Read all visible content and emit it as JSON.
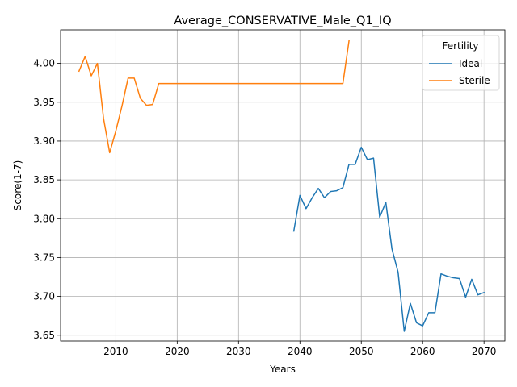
{
  "chart_data": {
    "type": "line",
    "title": "Average_CONSERVATIVE_Male_Q1_IQ",
    "xlabel": "Years",
    "ylabel": "Score(1-7)",
    "xlim": [
      2001,
      2073.4
    ],
    "ylim": [
      3.6425,
      4.0432
    ],
    "xticks": [
      2010,
      2020,
      2030,
      2040,
      2050,
      2060,
      2070
    ],
    "yticks": [
      3.65,
      3.7,
      3.75,
      3.8,
      3.85,
      3.9,
      3.95,
      4.0
    ],
    "ytick_labels": [
      "3.65",
      "3.70",
      "3.75",
      "3.80",
      "3.85",
      "3.90",
      "3.95",
      "4.00"
    ],
    "grid": true,
    "legend": {
      "title": "Fertility",
      "placement": "top-right"
    },
    "series": [
      {
        "name": "Ideal",
        "color": "#1f77b4",
        "x": [
          2039,
          2040,
          2041,
          2042,
          2043,
          2044,
          2045,
          2046,
          2047,
          2048,
          2049,
          2050,
          2051,
          2052,
          2053,
          2054,
          2055,
          2056,
          2057,
          2058,
          2059,
          2060,
          2061,
          2062,
          2063,
          2064,
          2065,
          2066,
          2067,
          2068,
          2069,
          2070
        ],
        "y": [
          3.784,
          3.83,
          3.813,
          3.827,
          3.839,
          3.827,
          3.835,
          3.836,
          3.84,
          3.87,
          3.87,
          3.892,
          3.876,
          3.878,
          3.802,
          3.821,
          3.761,
          3.731,
          3.655,
          3.691,
          3.666,
          3.662,
          3.679,
          3.679,
          3.729,
          3.726,
          3.724,
          3.723,
          3.699,
          3.722,
          3.702,
          3.705
        ]
      },
      {
        "name": "Sterile",
        "color": "#ff7f0e",
        "x": [
          2004,
          2005,
          2006,
          2007,
          2008,
          2009,
          2010,
          2011,
          2012,
          2013,
          2014,
          2015,
          2016,
          2017,
          2018,
          2019,
          2020,
          2021,
          2022,
          2023,
          2024,
          2025,
          2026,
          2027,
          2028,
          2029,
          2030,
          2031,
          2032,
          2033,
          2034,
          2035,
          2036,
          2037,
          2038,
          2039,
          2040,
          2041,
          2042,
          2043,
          2044,
          2045,
          2046,
          2047,
          2048
        ],
        "y": [
          3.99,
          4.009,
          3.984,
          4.0,
          3.929,
          3.885,
          3.913,
          3.945,
          3.981,
          3.981,
          3.955,
          3.946,
          3.947,
          3.974,
          3.974,
          3.974,
          3.974,
          3.974,
          3.974,
          3.974,
          3.974,
          3.974,
          3.974,
          3.974,
          3.974,
          3.974,
          3.974,
          3.974,
          3.974,
          3.974,
          3.974,
          3.974,
          3.974,
          3.974,
          3.974,
          3.974,
          3.974,
          3.974,
          3.974,
          3.974,
          3.974,
          3.974,
          3.974,
          3.974,
          4.029
        ]
      }
    ]
  }
}
